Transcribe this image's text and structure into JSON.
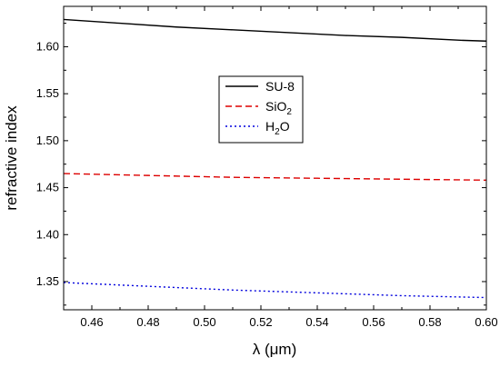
{
  "chart_data": {
    "type": "line",
    "title": "",
    "xlabel": "λ (μm)",
    "ylabel": "refractive index",
    "xlim": [
      0.45,
      0.6
    ],
    "ylim": [
      1.32,
      1.643
    ],
    "xticks": [
      0.46,
      0.48,
      0.5,
      0.52,
      0.54,
      0.56,
      0.58,
      0.6
    ],
    "xtick_labels": [
      "0.46",
      "0.48",
      "0.50",
      "0.52",
      "0.54",
      "0.56",
      "0.58",
      "0.60"
    ],
    "yticks": [
      1.35,
      1.4,
      1.45,
      1.5,
      1.55,
      1.6
    ],
    "ytick_labels": [
      "1.35",
      "1.40",
      "1.45",
      "1.50",
      "1.55",
      "1.60"
    ],
    "grid": false,
    "legend_position": "upper-center",
    "series": [
      {
        "name": "SU-8",
        "legend_parts": [
          {
            "text": "SU-8",
            "sub": ""
          }
        ],
        "color": "#000000",
        "linestyle": "solid",
        "x": [
          0.45,
          0.47,
          0.49,
          0.51,
          0.53,
          0.55,
          0.57,
          0.59,
          0.6
        ],
        "y": [
          1.629,
          1.625,
          1.621,
          1.618,
          1.615,
          1.612,
          1.61,
          1.607,
          1.606
        ]
      },
      {
        "name": "SiO2",
        "legend_parts": [
          {
            "text": "SiO",
            "sub": "2"
          }
        ],
        "color": "#dd0000",
        "linestyle": "dashed",
        "x": [
          0.45,
          0.48,
          0.51,
          0.54,
          0.57,
          0.6
        ],
        "y": [
          1.465,
          1.463,
          1.461,
          1.46,
          1.459,
          1.458
        ]
      },
      {
        "name": "H2O",
        "legend_parts": [
          {
            "text": "H",
            "sub": "2",
            "after": "O"
          }
        ],
        "color": "#0000dd",
        "linestyle": "dotted",
        "x": [
          0.45,
          0.48,
          0.51,
          0.54,
          0.57,
          0.6
        ],
        "y": [
          1.349,
          1.345,
          1.341,
          1.338,
          1.335,
          1.333
        ]
      }
    ]
  }
}
